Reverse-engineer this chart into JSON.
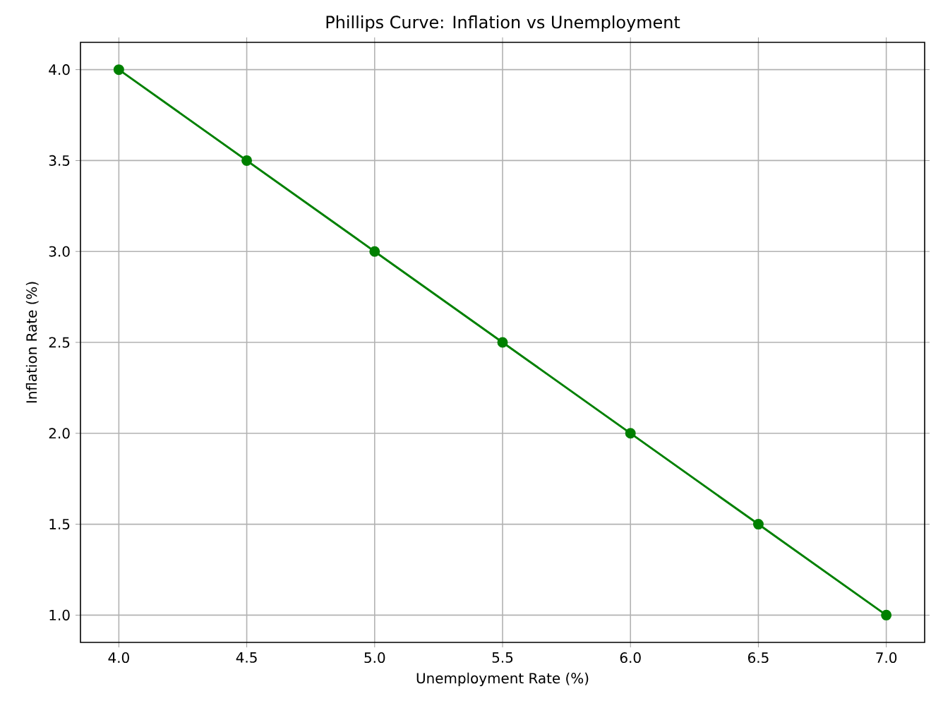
{
  "chart_data": {
    "type": "line",
    "title": "Phillips Curve: Inflation vs Unemployment",
    "xlabel": "Unemployment Rate (%)",
    "ylabel": "Inflation Rate (%)",
    "x": [
      4.0,
      4.5,
      5.0,
      5.5,
      6.0,
      6.5,
      7.0
    ],
    "series": [
      {
        "color": "#008000",
        "values": [
          4.0,
          3.5,
          3.0,
          2.5,
          2.0,
          1.5,
          1.0
        ]
      }
    ],
    "xlim": [
      3.85,
      7.15
    ],
    "ylim": [
      0.85,
      4.15
    ],
    "xticks": [
      {
        "value": 4.0,
        "label": "4.0"
      },
      {
        "value": 4.5,
        "label": "4.5"
      },
      {
        "value": 5.0,
        "label": "5.0"
      },
      {
        "value": 5.5,
        "label": "5.5"
      },
      {
        "value": 6.0,
        "label": "6.0"
      },
      {
        "value": 6.5,
        "label": "6.5"
      },
      {
        "value": 7.0,
        "label": "7.0"
      }
    ],
    "yticks": [
      {
        "value": 1.0,
        "label": "1.0"
      },
      {
        "value": 1.5,
        "label": "1.5"
      },
      {
        "value": 2.0,
        "label": "2.0"
      },
      {
        "value": 2.5,
        "label": "2.5"
      },
      {
        "value": 3.0,
        "label": "3.0"
      },
      {
        "value": 3.5,
        "label": "3.5"
      },
      {
        "value": 4.0,
        "label": "4.0"
      }
    ],
    "grid": true,
    "marker": "circle",
    "line_style": "solid"
  }
}
